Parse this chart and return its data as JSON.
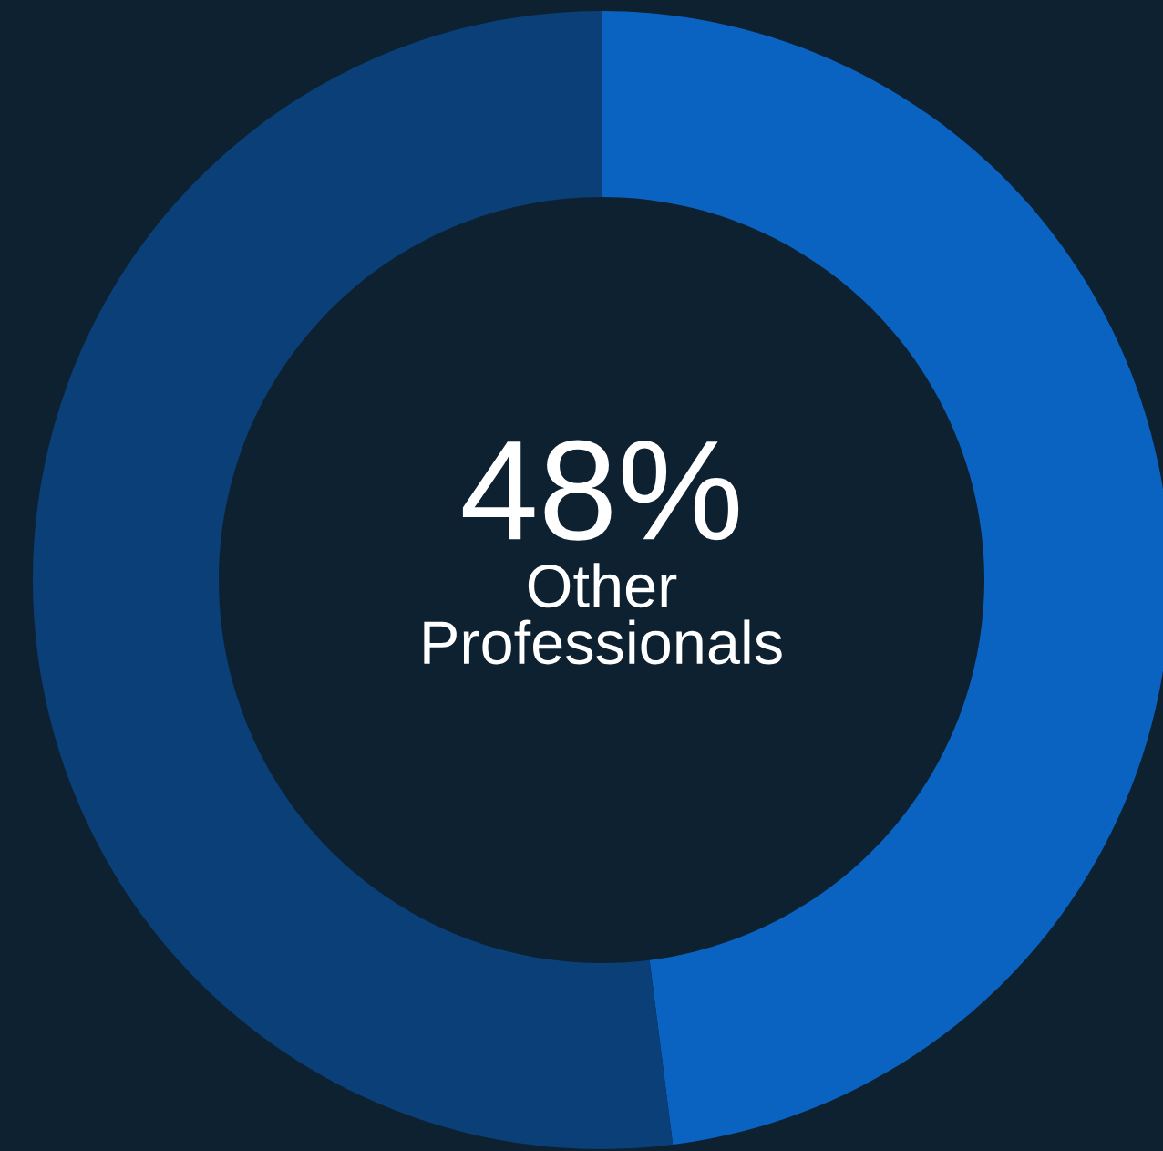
{
  "chart_data": {
    "type": "donut",
    "categories": [
      "Other Professionals",
      null
    ],
    "values": [
      48,
      52
    ],
    "colors": [
      "#0b63c1",
      "#0a3f78"
    ],
    "value_labels": [
      "48%",
      null
    ]
  }
}
